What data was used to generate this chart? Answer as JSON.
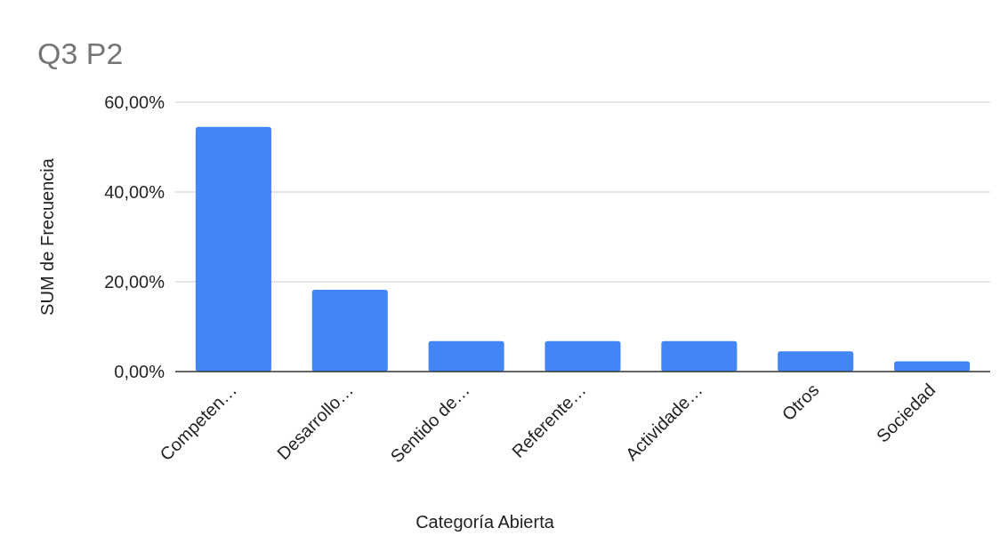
{
  "chart_data": {
    "type": "bar",
    "title": "Q3 P2",
    "xlabel": "Categoría Abierta",
    "ylabel": "SUM de Frecuencia",
    "categories": [
      "Competen…",
      "Desarrollo…",
      "Sentido de…",
      "Referente…",
      "Actividade…",
      "Otros",
      "Sociedad"
    ],
    "values": [
      54.5,
      18.2,
      6.8,
      6.8,
      6.8,
      4.5,
      2.3
    ],
    "color": "#4285f4",
    "ylim": [
      0,
      60
    ],
    "yticks": [
      {
        "value": 0,
        "label": "0,00%"
      },
      {
        "value": 20,
        "label": "20,00%"
      },
      {
        "value": 40,
        "label": "40,00%"
      },
      {
        "value": 60,
        "label": "60,00%"
      }
    ],
    "grid": "y"
  }
}
